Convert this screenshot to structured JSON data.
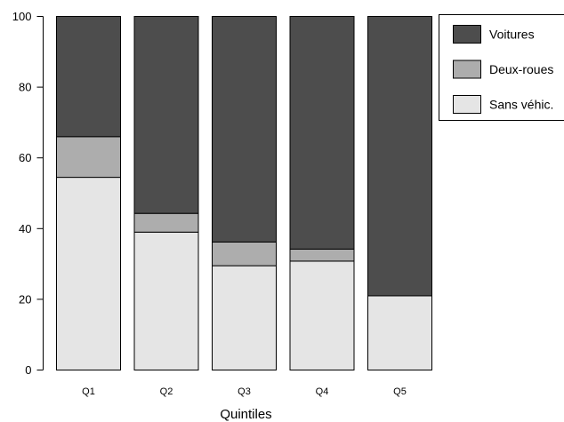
{
  "chart_data": {
    "type": "bar",
    "stacked": true,
    "categories": [
      "Q1",
      "Q2",
      "Q3",
      "Q4",
      "Q5"
    ],
    "series": [
      {
        "name": "Sans véhic.",
        "values": [
          54.5,
          39.0,
          29.5,
          30.8,
          21.0
        ],
        "color": "#e5e5e5"
      },
      {
        "name": "Deux-roues",
        "values": [
          11.5,
          5.3,
          6.7,
          3.4,
          0.0
        ],
        "color": "#adadad"
      },
      {
        "name": "Voitures",
        "values": [
          34.0,
          55.7,
          63.8,
          65.8,
          79.0
        ],
        "color": "#4d4d4d"
      }
    ],
    "title": "",
    "xlabel": "Quintiles",
    "ylabel": "",
    "ylim": [
      0,
      100
    ],
    "yticks": [
      0,
      20,
      40,
      60,
      80,
      100
    ],
    "grid": false,
    "legend": {
      "position": "top-right",
      "order": [
        "Voitures",
        "Deux-roues",
        "Sans véhic."
      ]
    }
  }
}
